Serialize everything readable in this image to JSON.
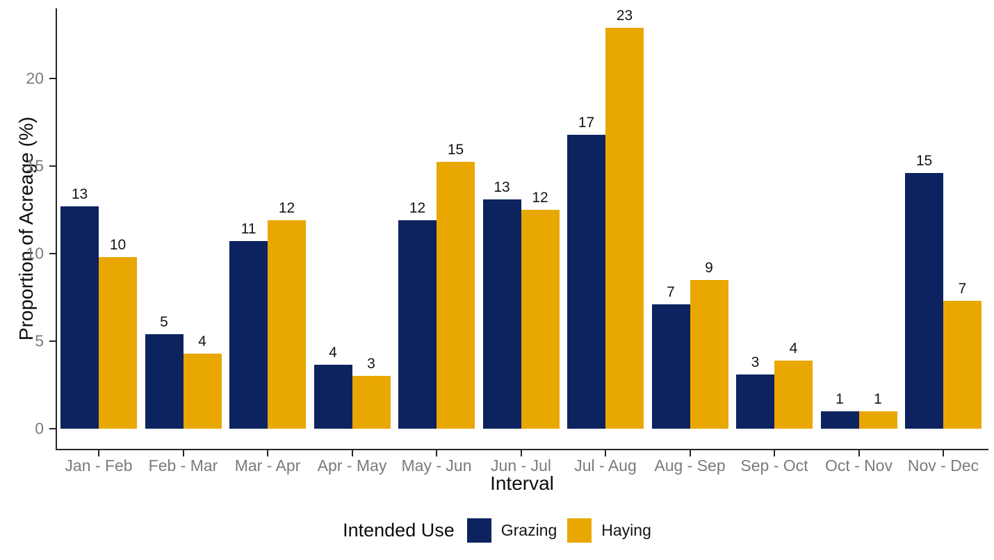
{
  "chart_data": {
    "type": "bar",
    "title": "",
    "xlabel": "Interval",
    "ylabel": "Proportion of Acreage (%)",
    "categories": [
      "Jan - Feb",
      "Feb - Mar",
      "Mar - Apr",
      "Apr - May",
      "May - Jun",
      "Jun - Jul",
      "Jul - Aug",
      "Aug - Sep",
      "Sep - Oct",
      "Oct - Nov",
      "Nov - Dec"
    ],
    "series": [
      {
        "name": "Grazing",
        "color": "#0c2360",
        "values": [
          12.7,
          5.4,
          10.7,
          3.65,
          11.9,
          13.1,
          16.8,
          7.1,
          3.1,
          1.0,
          14.6
        ],
        "bar_labels": [
          "13",
          "5",
          "11",
          "4",
          "12",
          "13",
          "17",
          "7",
          "3",
          "1",
          "15"
        ]
      },
      {
        "name": "Haying",
        "color": "#e9a702",
        "values": [
          9.8,
          4.3,
          11.9,
          3.0,
          15.25,
          12.5,
          22.9,
          8.5,
          3.9,
          1.0,
          7.3
        ],
        "bar_labels": [
          "10",
          "4",
          "12",
          "3",
          "15",
          "12",
          "23",
          "9",
          "4",
          "1",
          "7"
        ]
      }
    ],
    "legend": {
      "title": "Intended Use",
      "position": "bottom"
    },
    "yticks": [
      0,
      5,
      10,
      15,
      20
    ],
    "ytick_labels": [
      "0",
      "5",
      "10",
      "15",
      "20"
    ],
    "ylim": [
      0,
      24
    ],
    "grid": false,
    "bar_value_labels": "rounded integers shown above each bar",
    "colors": {
      "grazing": "#0c2360",
      "haying": "#e9a702",
      "axis_line": "#242424",
      "tick_label_text": "#7b7b7b",
      "title_text": "#0d0d0d",
      "background": "#ffffff"
    }
  }
}
